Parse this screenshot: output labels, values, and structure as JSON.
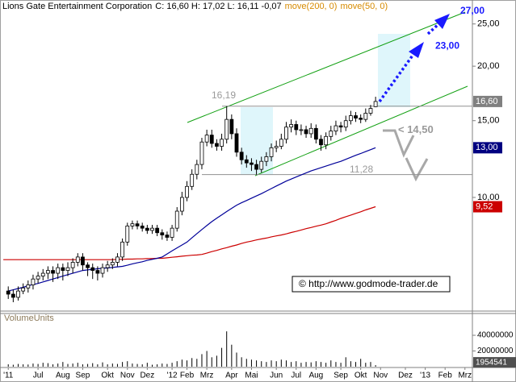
{
  "chart_data": {
    "type": "candlestick",
    "title": "Lions Gate Entertainment Corporation",
    "quote": "C: 16,60 H: 17,02 L: 16,11 -0,07",
    "source": "© http://www.godmode-trader.de",
    "log_scale": true,
    "up_color": "#ffffff",
    "down_color": "#000000",
    "categories": [
      null,
      "'11",
      null,
      null,
      null,
      null,
      null,
      "Jul",
      null,
      null,
      null,
      null,
      "Aug",
      null,
      null,
      null,
      "Sep",
      null,
      null,
      null,
      null,
      "Okt",
      null,
      null,
      null,
      "Nov",
      null,
      null,
      null,
      "Dez",
      null,
      null,
      null,
      null,
      "'12",
      null,
      null,
      "Feb",
      null,
      null,
      null,
      "Mrz",
      null,
      null,
      null,
      null,
      "Apr",
      null,
      null,
      null,
      "Mai",
      null,
      null,
      null,
      null,
      "Jun",
      null,
      null,
      null,
      "Jul",
      null,
      null,
      null,
      "Aug",
      null,
      null,
      null,
      null,
      "Sep",
      null,
      null,
      null,
      "Okt",
      null,
      null,
      null,
      "Nov",
      null,
      null,
      null,
      null,
      "Dez",
      null,
      null,
      null,
      "'13",
      null,
      null,
      null,
      "Feb",
      null,
      null,
      null,
      "Mrz",
      null
    ],
    "open": [
      null,
      6.1,
      6.0,
      5.9,
      6.1,
      6.2,
      6.3,
      6.5,
      6.6,
      6.7,
      6.8,
      6.7,
      6.9,
      6.8,
      6.9,
      7.1,
      7.3,
      7.0,
      6.9,
      6.8,
      6.7,
      6.9,
      7.0,
      7.1,
      7.3,
      7.9,
      8.6,
      8.7,
      8.6,
      8.5,
      8.4,
      8.5,
      8.3,
      8.2,
      8.1,
      8.5,
      9.3,
      10.0,
      10.6,
      11.3,
      11.9,
      13.4,
      13.9,
      13.3,
      13.1,
      13.6,
      15.1,
      14.0,
      12.7,
      12.2,
      12.0,
      11.9,
      11.6,
      12.1,
      12.4,
      13.0,
      13.1,
      13.6,
      14.5,
      14.7,
      14.3,
      14.3,
      14.0,
      14.4,
      13.6,
      13.2,
      13.8,
      14.2,
      14.6,
      14.5,
      15.0,
      15.4,
      15.2,
      15.1,
      15.6,
      16.15,
      null,
      null,
      null,
      null,
      null,
      null,
      null,
      null,
      null,
      null,
      null,
      null,
      null,
      null,
      null,
      null,
      null,
      null,
      null
    ],
    "high": [
      null,
      6.25,
      6.15,
      6.25,
      6.35,
      6.45,
      6.65,
      6.75,
      6.85,
      6.95,
      6.95,
      7.05,
      7.05,
      7.1,
      7.25,
      7.45,
      7.45,
      7.1,
      7.05,
      6.95,
      7.05,
      7.15,
      7.25,
      7.45,
      8.05,
      8.75,
      8.85,
      8.85,
      8.75,
      8.65,
      8.65,
      8.65,
      8.45,
      8.35,
      8.65,
      9.5,
      10.3,
      10.9,
      11.6,
      12.2,
      13.7,
      14.3,
      14.3,
      13.6,
      14.0,
      16.19,
      15.5,
      14.4,
      13.0,
      12.5,
      12.3,
      12.2,
      12.4,
      12.7,
      13.3,
      13.5,
      14.0,
      14.9,
      15.1,
      15.0,
      14.7,
      14.6,
      14.8,
      14.7,
      13.9,
      14.1,
      14.6,
      15.0,
      14.9,
      15.4,
      15.8,
      15.7,
      15.5,
      16.0,
      16.3,
      17.02,
      null,
      null,
      null,
      null,
      null,
      null,
      null,
      null,
      null,
      null,
      null,
      null,
      null,
      null,
      null,
      null,
      null,
      null,
      null
    ],
    "low": [
      null,
      5.85,
      5.75,
      5.8,
      6.0,
      6.05,
      6.15,
      6.35,
      6.45,
      6.5,
      6.4,
      6.5,
      6.45,
      6.6,
      6.7,
      6.95,
      6.8,
      6.6,
      6.5,
      6.45,
      6.55,
      6.75,
      6.85,
      6.95,
      7.15,
      7.75,
      8.45,
      8.45,
      8.35,
      8.25,
      8.25,
      8.15,
      8.0,
      7.95,
      7.95,
      8.35,
      9.1,
      9.8,
      10.4,
      11.0,
      11.6,
      13.1,
      13.0,
      12.8,
      12.8,
      13.3,
      13.6,
      12.4,
      11.9,
      11.7,
      11.5,
      11.28,
      11.4,
      11.8,
      12.1,
      12.7,
      12.9,
      13.3,
      14.1,
      13.9,
      13.9,
      13.7,
      13.7,
      13.3,
      12.8,
      12.9,
      13.5,
      13.9,
      14.1,
      14.2,
      14.7,
      14.9,
      14.8,
      14.9,
      15.4,
      16.11,
      null,
      null,
      null,
      null,
      null,
      null,
      null,
      null,
      null,
      null,
      null,
      null,
      null,
      null,
      null,
      null,
      null,
      null,
      null
    ],
    "close": [
      null,
      6.0,
      5.9,
      6.1,
      6.2,
      6.3,
      6.5,
      6.6,
      6.7,
      6.8,
      6.7,
      6.9,
      6.8,
      6.9,
      7.1,
      7.3,
      7.0,
      6.9,
      6.8,
      6.7,
      6.9,
      7.0,
      7.1,
      7.3,
      7.9,
      8.6,
      8.7,
      8.6,
      8.5,
      8.4,
      8.5,
      8.3,
      8.2,
      8.1,
      8.5,
      9.3,
      10.0,
      10.6,
      11.3,
      11.9,
      13.4,
      13.9,
      13.3,
      13.1,
      13.6,
      15.1,
      14.0,
      12.7,
      12.2,
      12.0,
      11.9,
      11.6,
      12.1,
      12.4,
      13.0,
      13.1,
      13.6,
      14.5,
      14.7,
      14.3,
      14.3,
      14.0,
      14.4,
      13.6,
      13.2,
      13.8,
      14.2,
      14.6,
      14.5,
      15.0,
      15.4,
      15.2,
      15.1,
      15.6,
      16.0,
      16.6,
      null,
      null,
      null,
      null,
      null,
      null,
      null,
      null,
      null,
      null,
      null,
      null,
      null,
      null,
      null,
      null,
      null,
      null,
      null
    ],
    "series": [
      {
        "name": "move(200, 0)",
        "color": "#cc0000",
        "values": [
          7.2,
          7.2,
          7.2,
          7.2,
          7.2,
          7.2,
          7.2,
          7.2,
          7.2,
          7.2,
          7.2,
          7.2,
          7.2,
          7.2,
          7.2,
          7.2,
          7.2,
          7.2,
          7.2,
          7.2,
          7.2,
          7.2,
          7.2,
          7.21,
          7.21,
          7.22,
          7.22,
          7.23,
          7.23,
          7.24,
          7.24,
          7.25,
          7.25,
          7.27,
          7.29,
          7.31,
          7.33,
          7.35,
          7.37,
          7.38,
          7.4,
          7.45,
          7.51,
          7.56,
          7.62,
          7.67,
          7.73,
          7.78,
          7.84,
          7.9,
          7.94,
          7.99,
          8.03,
          8.07,
          8.12,
          8.16,
          8.2,
          8.25,
          8.31,
          8.36,
          8.42,
          8.48,
          8.53,
          8.59,
          8.64,
          8.7,
          8.78,
          8.86,
          8.95,
          9.03,
          9.11,
          9.19,
          9.27,
          9.36,
          9.44,
          9.52,
          null,
          null,
          null,
          null,
          null,
          null,
          null,
          null,
          null,
          null,
          null,
          null,
          null,
          null,
          null,
          null,
          null,
          null,
          null
        ]
      },
      {
        "name": "move(50, 0)",
        "color": "#000099",
        "values": [
          null,
          6.1,
          6.14,
          6.18,
          6.22,
          6.27,
          6.31,
          6.35,
          6.4,
          6.45,
          6.5,
          6.55,
          6.6,
          6.65,
          6.7,
          6.75,
          6.8,
          6.82,
          6.84,
          6.86,
          6.88,
          6.89,
          6.91,
          6.93,
          6.95,
          6.99,
          7.04,
          7.08,
          7.12,
          7.17,
          7.21,
          7.25,
          7.3,
          7.42,
          7.54,
          7.66,
          7.78,
          7.9,
          8.08,
          8.26,
          8.44,
          8.62,
          8.8,
          8.96,
          9.12,
          9.28,
          9.44,
          9.6,
          9.72,
          9.84,
          9.96,
          10.08,
          10.2,
          10.34,
          10.48,
          10.62,
          10.76,
          10.9,
          11.02,
          11.14,
          11.26,
          11.38,
          11.5,
          11.6,
          11.7,
          11.8,
          11.9,
          12.0,
          12.1,
          12.23,
          12.36,
          12.49,
          12.61,
          12.74,
          12.87,
          13.0,
          null,
          null,
          null,
          null,
          null,
          null,
          null,
          null,
          null,
          null,
          null,
          null,
          null,
          null,
          null,
          null,
          null,
          null,
          null
        ]
      }
    ],
    "ylim": [
      5.51,
      28.37
    ],
    "yticks": [
      {
        "value": 25,
        "label": "25,00"
      },
      {
        "value": 20,
        "label": "20,00"
      },
      {
        "value": 15,
        "label": "15,00"
      },
      {
        "value": 10,
        "label": "10,00"
      }
    ],
    "price_labels": [
      {
        "value": 16.6,
        "label": "16,60",
        "color": "#808080"
      },
      {
        "value": 13,
        "label": "13,00",
        "color": "#000080"
      },
      {
        "value": 9.52,
        "label": "9,52",
        "color": "#cc0000"
      }
    ],
    "annotations": [
      {
        "value": 16.19,
        "label": "16,19"
      },
      {
        "value": 11.28,
        "label": "11,28"
      },
      {
        "value": 14.5,
        "label": "< 14,50"
      },
      {
        "value": 23,
        "label": "23,00"
      },
      {
        "value": 27,
        "label": "27,00"
      }
    ],
    "volume": {
      "label": "VolumeUnits",
      "color": "#000000",
      "ylim": [
        0,
        58500000
      ],
      "yticks": [
        40000000,
        20000000
      ],
      "values": [
        null,
        3000000,
        2500000,
        3500000,
        3000000,
        2800000,
        4000000,
        3500000,
        5000000,
        4500000,
        3000000,
        4000000,
        6000000,
        3500000,
        4000000,
        5000000,
        3000000,
        3500000,
        4500000,
        3000000,
        5500000,
        3000000,
        4000000,
        3500000,
        6000000,
        7000000,
        4000000,
        3500000,
        3000000,
        5000000,
        2500000,
        3000000,
        4000000,
        3500000,
        5000000,
        7000000,
        9000000,
        8000000,
        11000000,
        10000000,
        16000000,
        20000000,
        12000000,
        14000000,
        24000000,
        45000000,
        28000000,
        18000000,
        12000000,
        10000000,
        9000000,
        8000000,
        7000000,
        6000000,
        8000000,
        7000000,
        9000000,
        8000000,
        6000000,
        7000000,
        5000000,
        6000000,
        5500000,
        7000000,
        6000000,
        5000000,
        8000000,
        6000000,
        5000000,
        12000000,
        7000000,
        6000000,
        10000000,
        5000000,
        6000000,
        1954541,
        null,
        null,
        null,
        null,
        null,
        null,
        null,
        null,
        null,
        null,
        null,
        null,
        null,
        null,
        null,
        null,
        null,
        null,
        null
      ]
    }
  }
}
